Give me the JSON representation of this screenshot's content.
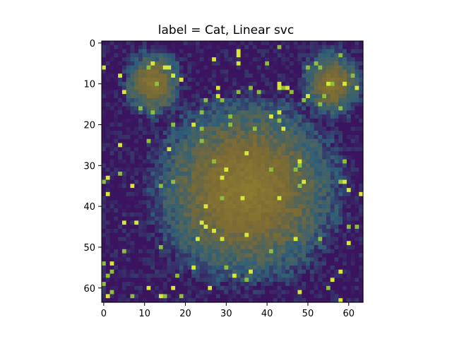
{
  "title": "label = Cat, Linear svc",
  "image": {
    "description_icon": "cat-face-heatmap-overlay",
    "grid_size": 64,
    "colors": {
      "dark": "#3b1460",
      "mid": "#2f5f78",
      "brown": "#7a6a35",
      "olive": "#8a7a30",
      "green": "#8fbf3a",
      "yellow": "#d8e838"
    }
  },
  "axes": {
    "xlim": [
      -0.5,
      63.5
    ],
    "ylim": [
      63.5,
      -0.5
    ],
    "xticks": [
      "0",
      "10",
      "20",
      "30",
      "40",
      "50",
      "60"
    ],
    "yticks": [
      "0",
      "10",
      "20",
      "30",
      "40",
      "50",
      "60"
    ]
  }
}
